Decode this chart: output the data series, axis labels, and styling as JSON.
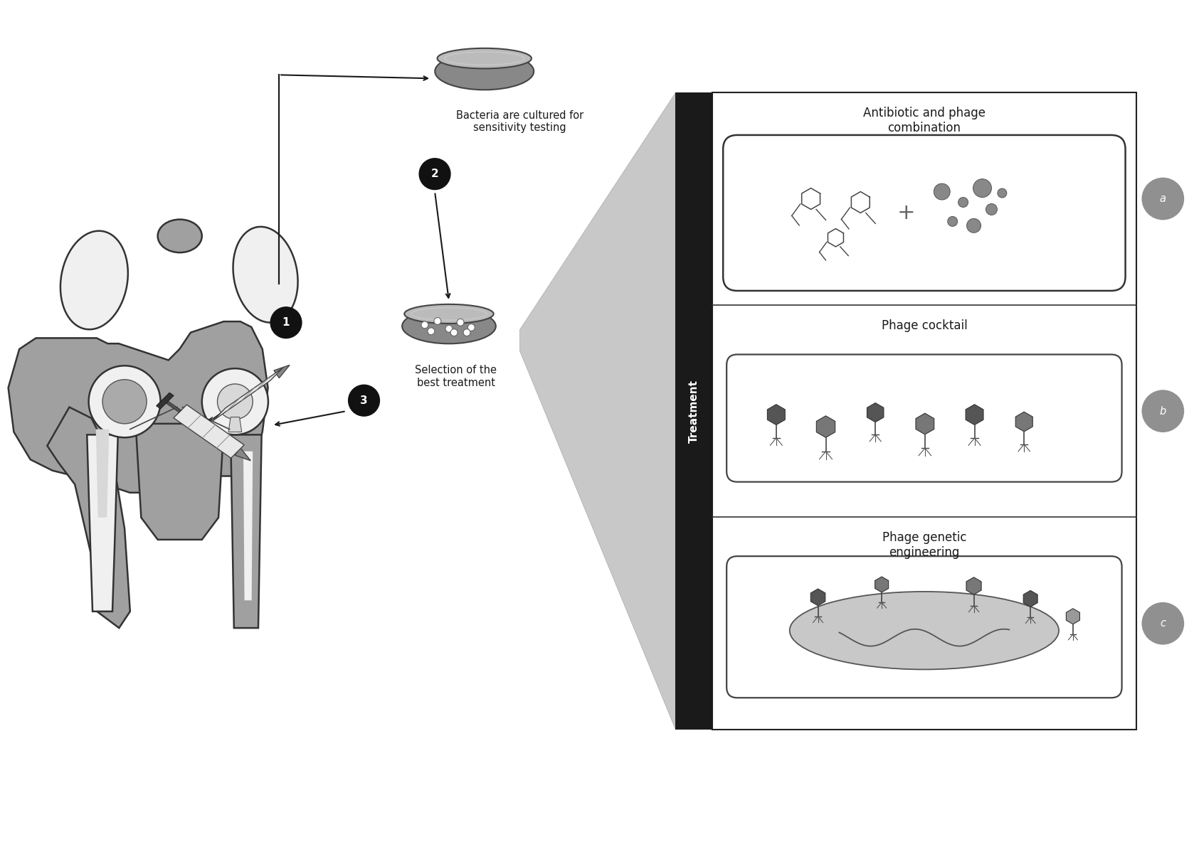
{
  "bg_color": "#ffffff",
  "fig_width": 16.78,
  "fig_height": 12.08,
  "text_color": "#1a1a1a",
  "arrow_color": "#1a1a1a",
  "bacteria_text": "Bacteria are cultured for\nsensitivity testing",
  "selection_text": "Selection of the\nbest treatment",
  "treatment_text": "Treatment",
  "panel_a_title": "Antibiotic and phage\ncombination",
  "panel_b_title": "Phage cocktail",
  "panel_c_title": "Phage genetic\nengineering",
  "label_a": "a",
  "label_b": "b",
  "label_c": "c",
  "hip_gray": "#a0a0a0",
  "hip_light": "#d8d8d8",
  "hip_white": "#f0f0f0",
  "petri_gray": "#888888",
  "petri_light": "#bbbbbb",
  "black_bar": "#1a1a1a",
  "side_label_bg": "#909090",
  "phage_dark": "#555555",
  "phage_mid": "#777777",
  "phage_light": "#999999"
}
